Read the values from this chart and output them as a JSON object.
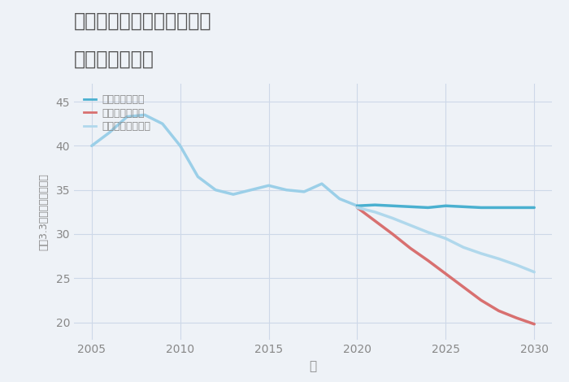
{
  "title1": "岐阜県関市武芸川町谷口の",
  "title2": "土地の価格推移",
  "xlabel": "年",
  "ylabel": "坪（3.3㎡）単価（万円）",
  "background_color": "#eef2f7",
  "plot_background": "#eef2f7",
  "ylim": [
    18,
    47
  ],
  "xlim": [
    2004,
    2031
  ],
  "yticks": [
    20,
    25,
    30,
    35,
    40,
    45
  ],
  "xticks": [
    2005,
    2010,
    2015,
    2020,
    2025,
    2030
  ],
  "historical": {
    "years": [
      2005,
      2006,
      2007,
      2008,
      2009,
      2010,
      2011,
      2012,
      2013,
      2014,
      2015,
      2016,
      2017,
      2018,
      2019,
      2020
    ],
    "values": [
      40.0,
      41.5,
      43.3,
      43.5,
      42.5,
      40.0,
      36.5,
      35.0,
      34.5,
      35.0,
      35.5,
      35.0,
      34.8,
      35.7,
      34.0,
      33.2
    ],
    "color": "#9bcfe8",
    "linewidth": 2.5
  },
  "good": {
    "years": [
      2020,
      2021,
      2022,
      2023,
      2024,
      2025,
      2026,
      2027,
      2028,
      2029,
      2030
    ],
    "values": [
      33.2,
      33.3,
      33.2,
      33.1,
      33.0,
      33.2,
      33.1,
      33.0,
      33.0,
      33.0,
      33.0
    ],
    "color": "#4ab0d0",
    "linewidth": 2.5,
    "label": "グッドシナリオ",
    "linestyle": "-"
  },
  "bad": {
    "years": [
      2020,
      2021,
      2022,
      2023,
      2024,
      2025,
      2026,
      2027,
      2028,
      2029,
      2030
    ],
    "values": [
      33.0,
      31.5,
      30.0,
      28.4,
      27.0,
      25.5,
      24.0,
      22.5,
      21.3,
      20.5,
      19.8
    ],
    "color": "#d87070",
    "linewidth": 2.5,
    "label": "バッドシナリオ",
    "linestyle": "-"
  },
  "normal": {
    "years": [
      2020,
      2021,
      2022,
      2023,
      2024,
      2025,
      2026,
      2027,
      2028,
      2029,
      2030
    ],
    "values": [
      33.0,
      32.5,
      31.8,
      31.0,
      30.2,
      29.5,
      28.5,
      27.8,
      27.2,
      26.5,
      25.7
    ],
    "color": "#b0d8ec",
    "linewidth": 2.5,
    "label": "ノーマルシナリオ",
    "linestyle": "-"
  },
  "grid_color": "#cdd8e8",
  "title_color": "#555555",
  "label_color": "#888888",
  "tick_color": "#888888",
  "legend_fontsize": 9,
  "title_fontsize": 17,
  "axis_fontsize": 10
}
